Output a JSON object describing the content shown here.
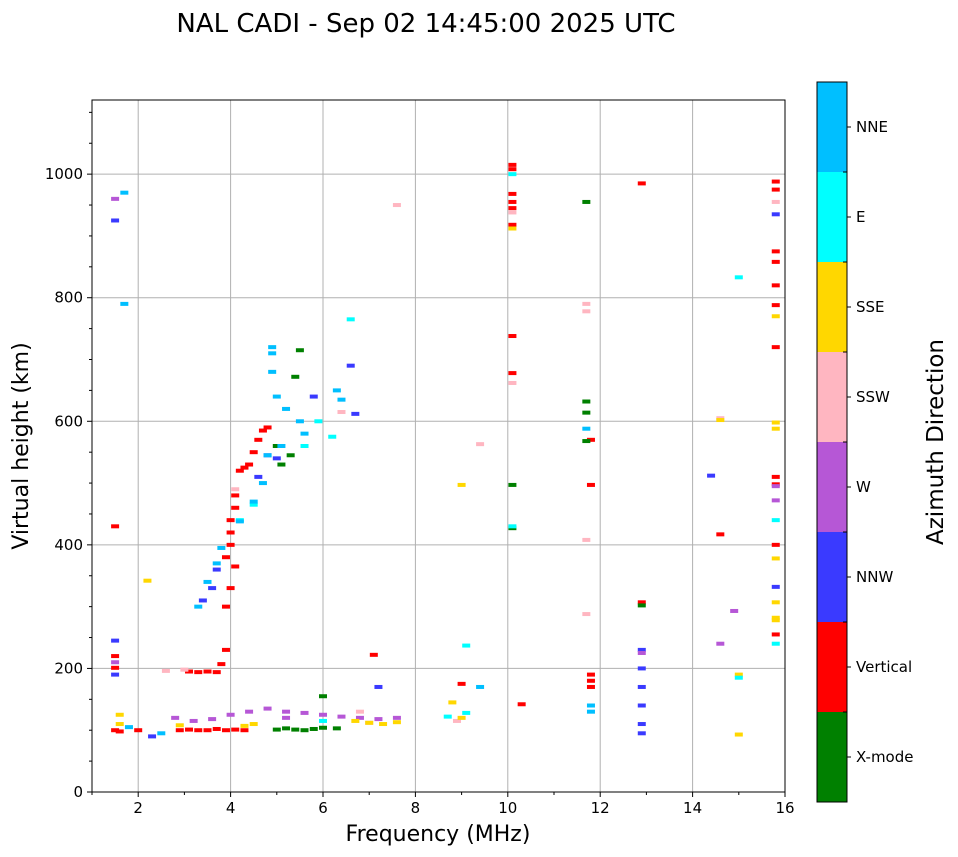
{
  "chart_data": {
    "type": "scatter",
    "title": "NAL CADI - Sep 02 14:45:00 2025 UTC",
    "xlabel": "Frequency (MHz)",
    "ylabel": "Virtual height (km)",
    "xlim": [
      1,
      16
    ],
    "ylim": [
      0,
      1120
    ],
    "xticks": [
      2,
      4,
      6,
      8,
      10,
      12,
      14,
      16
    ],
    "yticks": [
      0,
      200,
      400,
      600,
      800,
      1000
    ],
    "grid": true,
    "colorbar": {
      "title": "Azimuth Direction",
      "categories": [
        {
          "name": "X-mode",
          "color": "#008000"
        },
        {
          "name": "Vertical",
          "color": "#ff0000"
        },
        {
          "name": "NNW",
          "color": "#3a3aff"
        },
        {
          "name": "W",
          "color": "#b657d6"
        },
        {
          "name": "SSW",
          "color": "#ffb6c1"
        },
        {
          "name": "SSE",
          "color": "#ffd700"
        },
        {
          "name": "E",
          "color": "#00ffff"
        },
        {
          "name": "NNE",
          "color": "#00bfff"
        }
      ]
    },
    "series": [
      {
        "name": "Vertical",
        "points": [
          [
            1.5,
            100
          ],
          [
            1.6,
            98
          ],
          [
            2.0,
            100
          ],
          [
            2.9,
            100
          ],
          [
            3.1,
            101
          ],
          [
            3.3,
            100
          ],
          [
            3.5,
            100
          ],
          [
            3.7,
            102
          ],
          [
            3.9,
            100
          ],
          [
            4.1,
            101
          ],
          [
            4.3,
            100
          ],
          [
            3.1,
            195
          ],
          [
            3.3,
            194
          ],
          [
            3.5,
            195
          ],
          [
            3.7,
            194
          ],
          [
            3.8,
            207
          ],
          [
            3.9,
            230
          ],
          [
            3.9,
            300
          ],
          [
            4.0,
            330
          ],
          [
            3.9,
            380
          ],
          [
            4.0,
            400
          ],
          [
            4.0,
            420
          ],
          [
            4.0,
            440
          ],
          [
            4.1,
            460
          ],
          [
            4.1,
            480
          ],
          [
            4.2,
            520
          ],
          [
            4.3,
            525
          ],
          [
            4.4,
            530
          ],
          [
            4.5,
            550
          ],
          [
            4.6,
            570
          ],
          [
            4.7,
            585
          ],
          [
            4.8,
            590
          ],
          [
            4.1,
            365
          ],
          [
            1.5,
            430
          ],
          [
            1.5,
            220
          ],
          [
            1.5,
            201
          ],
          [
            10.1,
            1015
          ],
          [
            10.1,
            1008
          ],
          [
            10.1,
            968
          ],
          [
            10.1,
            955
          ],
          [
            10.1,
            945
          ],
          [
            10.1,
            918
          ],
          [
            10.1,
            738
          ],
          [
            10.1,
            678
          ],
          [
            11.8,
            497
          ],
          [
            11.8,
            570
          ],
          [
            11.8,
            190
          ],
          [
            11.8,
            180
          ],
          [
            11.8,
            170
          ],
          [
            12.9,
            985
          ],
          [
            12.9,
            307
          ],
          [
            14.6,
            417
          ],
          [
            15.8,
            988
          ],
          [
            15.8,
            975
          ],
          [
            15.8,
            875
          ],
          [
            15.8,
            858
          ],
          [
            15.8,
            820
          ],
          [
            15.8,
            788
          ],
          [
            15.8,
            720
          ],
          [
            15.8,
            510
          ],
          [
            15.8,
            498
          ],
          [
            15.8,
            400
          ],
          [
            15.8,
            255
          ],
          [
            7.1,
            222
          ],
          [
            9.0,
            175
          ],
          [
            10.3,
            142
          ]
        ]
      },
      {
        "name": "X-mode",
        "points": [
          [
            5.2,
            103
          ],
          [
            5.4,
            101
          ],
          [
            5.6,
            100
          ],
          [
            5.8,
            102
          ],
          [
            6.0,
            104
          ],
          [
            6.3,
            103
          ],
          [
            5.0,
            101
          ],
          [
            5.1,
            530
          ],
          [
            5.3,
            545
          ],
          [
            5.5,
            715
          ],
          [
            5.4,
            672
          ],
          [
            6.0,
            155
          ],
          [
            10.1,
            497
          ],
          [
            10.1,
            427
          ],
          [
            11.7,
            955
          ],
          [
            11.7,
            632
          ],
          [
            11.7,
            614
          ],
          [
            11.7,
            568
          ],
          [
            12.9,
            302
          ],
          [
            5.0,
            560
          ]
        ]
      },
      {
        "name": "NNW",
        "points": [
          [
            1.5,
            245
          ],
          [
            1.5,
            190
          ],
          [
            1.5,
            925
          ],
          [
            2.3,
            90
          ],
          [
            3.4,
            310
          ],
          [
            3.6,
            330
          ],
          [
            3.7,
            360
          ],
          [
            4.6,
            510
          ],
          [
            4.8,
            545
          ],
          [
            5.0,
            540
          ],
          [
            5.8,
            640
          ],
          [
            6.6,
            690
          ],
          [
            6.7,
            612
          ],
          [
            12.9,
            230
          ],
          [
            12.9,
            200
          ],
          [
            12.9,
            170
          ],
          [
            12.9,
            140
          ],
          [
            12.9,
            110
          ],
          [
            12.9,
            95
          ],
          [
            14.4,
            512
          ],
          [
            15.8,
            935
          ],
          [
            15.8,
            332
          ],
          [
            7.2,
            170
          ]
        ]
      },
      {
        "name": "W",
        "points": [
          [
            2.8,
            120
          ],
          [
            3.2,
            115
          ],
          [
            3.6,
            118
          ],
          [
            4.0,
            125
          ],
          [
            4.4,
            130
          ],
          [
            4.8,
            135
          ],
          [
            5.2,
            130
          ],
          [
            5.6,
            128
          ],
          [
            6.0,
            125
          ],
          [
            6.4,
            122
          ],
          [
            6.8,
            120
          ],
          [
            7.2,
            118
          ],
          [
            7.6,
            120
          ],
          [
            1.5,
            960
          ],
          [
            1.5,
            210
          ],
          [
            12.9,
            225
          ],
          [
            14.6,
            240
          ],
          [
            14.9,
            293
          ],
          [
            15.8,
            472
          ],
          [
            15.8,
            495
          ],
          [
            5.2,
            120
          ]
        ]
      },
      {
        "name": "SSW",
        "points": [
          [
            2.6,
            196
          ],
          [
            3.0,
            198
          ],
          [
            4.1,
            490
          ],
          [
            6.4,
            615
          ],
          [
            7.6,
            950
          ],
          [
            9.4,
            563
          ],
          [
            10.1,
            938
          ],
          [
            10.1,
            662
          ],
          [
            11.7,
            790
          ],
          [
            11.7,
            778
          ],
          [
            11.7,
            408
          ],
          [
            11.7,
            288
          ],
          [
            14.6,
            605
          ],
          [
            15.8,
            955
          ],
          [
            8.9,
            115
          ],
          [
            6.8,
            130
          ],
          [
            7.0,
            112
          ]
        ]
      },
      {
        "name": "SSE",
        "points": [
          [
            1.6,
            110
          ],
          [
            1.6,
            125
          ],
          [
            2.2,
            342
          ],
          [
            2.9,
            108
          ],
          [
            4.3,
            107
          ],
          [
            4.5,
            110
          ],
          [
            6.7,
            115
          ],
          [
            7.0,
            112
          ],
          [
            7.3,
            110
          ],
          [
            7.6,
            113
          ],
          [
            8.8,
            145
          ],
          [
            9.0,
            120
          ],
          [
            9.0,
            497
          ],
          [
            10.1,
            912
          ],
          [
            14.6,
            602
          ],
          [
            15.0,
            93
          ],
          [
            15.0,
            190
          ],
          [
            15.8,
            770
          ],
          [
            15.8,
            598
          ],
          [
            15.8,
            588
          ],
          [
            15.8,
            378
          ],
          [
            15.8,
            307
          ],
          [
            15.8,
            282
          ],
          [
            15.8,
            278
          ]
        ]
      },
      {
        "name": "E",
        "points": [
          [
            4.2,
            440
          ],
          [
            4.5,
            465
          ],
          [
            5.6,
            560
          ],
          [
            5.9,
            600
          ],
          [
            6.2,
            575
          ],
          [
            6.6,
            765
          ],
          [
            9.1,
            237
          ],
          [
            9.1,
            128
          ],
          [
            10.1,
            430
          ],
          [
            10.1,
            1000
          ],
          [
            15.0,
            833
          ],
          [
            15.0,
            185
          ],
          [
            15.8,
            440
          ],
          [
            15.8,
            240
          ],
          [
            8.7,
            122
          ],
          [
            6.0,
            115
          ]
        ]
      },
      {
        "name": "NNE",
        "points": [
          [
            1.7,
            790
          ],
          [
            1.7,
            970
          ],
          [
            3.3,
            300
          ],
          [
            3.5,
            340
          ],
          [
            3.7,
            370
          ],
          [
            3.8,
            395
          ],
          [
            4.2,
            438
          ],
          [
            4.5,
            470
          ],
          [
            4.7,
            500
          ],
          [
            4.8,
            545
          ],
          [
            4.9,
            680
          ],
          [
            4.9,
            720
          ],
          [
            5.0,
            640
          ],
          [
            5.2,
            620
          ],
          [
            5.5,
            600
          ],
          [
            5.6,
            580
          ],
          [
            6.3,
            650
          ],
          [
            6.4,
            635
          ],
          [
            9.4,
            170
          ],
          [
            11.7,
            588
          ],
          [
            11.8,
            140
          ],
          [
            11.8,
            130
          ],
          [
            2.5,
            95
          ],
          [
            1.8,
            105
          ],
          [
            4.9,
            710
          ],
          [
            5.1,
            560
          ]
        ]
      }
    ]
  }
}
